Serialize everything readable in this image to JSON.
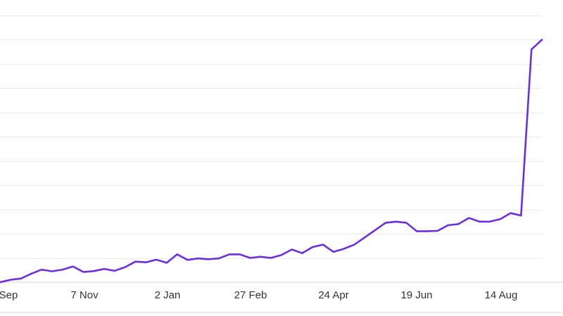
{
  "chart_data": {
    "type": "line",
    "xlabel": "",
    "ylabel": "",
    "x_tick_labels": [
      "Sep",
      "7 Nov",
      "2 Jan",
      "27 Feb",
      "24 Apr",
      "19 Jun",
      "14 Aug"
    ],
    "grid": true,
    "legend": "none",
    "ylim": [
      0,
      11
    ],
    "series": [
      {
        "color": "#6a30e0",
        "values": [
          0,
          0.1,
          0.15,
          0.35,
          0.52,
          0.45,
          0.52,
          0.65,
          0.42,
          0.46,
          0.55,
          0.47,
          0.62,
          0.85,
          0.82,
          0.93,
          0.8,
          1.15,
          0.92,
          0.98,
          0.95,
          0.98,
          1.15,
          1.15,
          1.0,
          1.05,
          1.0,
          1.12,
          1.35,
          1.2,
          1.45,
          1.55,
          1.25,
          1.38,
          1.55,
          1.85,
          2.15,
          2.45,
          2.5,
          2.45,
          2.1,
          2.1,
          2.12,
          2.35,
          2.4,
          2.65,
          2.5,
          2.5,
          2.6,
          2.85,
          2.75,
          9.6,
          10.0
        ]
      }
    ]
  },
  "colors": {
    "line": "#6a30e0",
    "grid": "#ececec",
    "axis": "#d7d7d7",
    "tick_text": "#333333"
  }
}
